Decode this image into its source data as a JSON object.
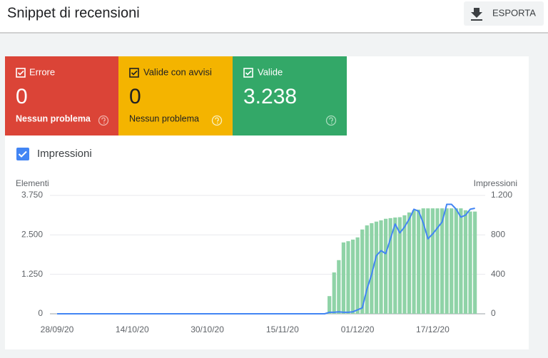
{
  "header": {
    "title": "Snippet di recensioni",
    "export": "ESPORTA"
  },
  "cards": [
    {
      "label": "Errore",
      "value": "0",
      "note": "Nessun problema",
      "color": "#db4437"
    },
    {
      "label": "Valide con avvisi",
      "value": "0",
      "note": "Nessun problema",
      "color": "#f4b400"
    },
    {
      "label": "Valide",
      "value": "3.238",
      "color": "#33a868"
    }
  ],
  "chart_data": {
    "type": "bar",
    "y_label": "Elementi",
    "y2_label": "Impressioni",
    "categories": [
      "28/09/20",
      null,
      null,
      null,
      null,
      null,
      null,
      null,
      null,
      null,
      null,
      null,
      null,
      null,
      null,
      null,
      "14/10/20",
      null,
      null,
      null,
      null,
      null,
      null,
      null,
      null,
      null,
      null,
      null,
      null,
      null,
      null,
      null,
      "30/10/20",
      null,
      null,
      null,
      null,
      null,
      null,
      null,
      null,
      null,
      null,
      null,
      null,
      null,
      null,
      null,
      "15/11/20",
      null,
      null,
      null,
      null,
      null,
      null,
      null,
      null,
      null,
      null,
      null,
      null,
      null,
      null,
      null,
      "01/12/20",
      null,
      null,
      null,
      null,
      null,
      null,
      null,
      null,
      null,
      null,
      null,
      null,
      null,
      null,
      null,
      "17/12/20",
      null,
      null,
      null,
      null,
      null,
      null,
      null,
      null,
      null
    ],
    "series": [
      {
        "type": "bar",
        "color": "#8fd3a7",
        "values": [
          0,
          0,
          0,
          0,
          0,
          0,
          0,
          0,
          0,
          0,
          0,
          0,
          0,
          0,
          0,
          0,
          0,
          0,
          0,
          0,
          0,
          0,
          0,
          0,
          0,
          0,
          0,
          0,
          0,
          0,
          0,
          0,
          0,
          0,
          0,
          0,
          0,
          0,
          0,
          0,
          0,
          0,
          0,
          0,
          0,
          0,
          0,
          0,
          0,
          0,
          0,
          0,
          0,
          0,
          0,
          0,
          0,
          0,
          560,
          1310,
          1700,
          2260,
          2300,
          2350,
          2420,
          2670,
          2800,
          2870,
          2920,
          2960,
          3010,
          3030,
          3050,
          3060,
          3120,
          3210,
          3280,
          3300,
          3340,
          3340,
          3340,
          3340,
          3340,
          3340,
          3340,
          3340,
          3340,
          3280,
          3240,
          3238
        ]
      },
      {
        "type": "line",
        "name": "Impressioni",
        "axis": "y2",
        "color": "#4285f4",
        "values": [
          0,
          0,
          0,
          0,
          0,
          0,
          0,
          0,
          0,
          0,
          0,
          0,
          0,
          0,
          0,
          0,
          0,
          0,
          0,
          0,
          0,
          0,
          0,
          0,
          0,
          0,
          0,
          0,
          0,
          0,
          0,
          0,
          0,
          0,
          0,
          0,
          0,
          0,
          0,
          0,
          0,
          0,
          0,
          0,
          0,
          0,
          0,
          0,
          0,
          0,
          0,
          0,
          0,
          0,
          0,
          0,
          0,
          0,
          15,
          15,
          20,
          15,
          15,
          20,
          40,
          60,
          250,
          400,
          590,
          640,
          610,
          760,
          910,
          820,
          880,
          960,
          1060,
          1040,
          920,
          760,
          810,
          870,
          930,
          1110,
          1110,
          1060,
          980,
          1000,
          1060,
          1070
        ]
      }
    ],
    "ylim": [
      0,
      3750
    ],
    "yticks": [
      0,
      {
        "value": 1250,
        "label": "1.250"
      },
      {
        "value": 2500,
        "label": "2.500"
      },
      {
        "value": 3750,
        "label": "3.750"
      }
    ],
    "y2lim": [
      0,
      1200
    ],
    "y2ticks": [
      0,
      400,
      800,
      {
        "value": 1200,
        "label": "1.200"
      }
    ],
    "grid": true
  }
}
